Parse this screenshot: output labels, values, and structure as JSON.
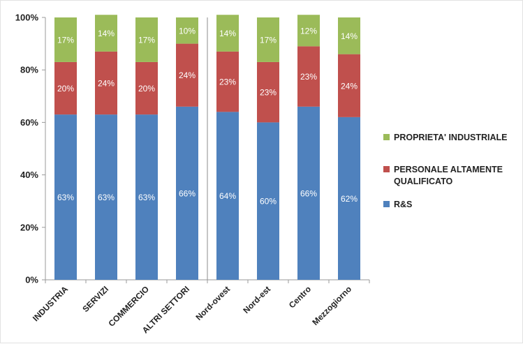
{
  "chart_data": {
    "type": "bar",
    "stacked": true,
    "percent_stacked": true,
    "categories": [
      "INDUSTRIA",
      "SERVIZI",
      "COMMERCIO",
      "ALTRI SETTORI",
      "Nord-ovest",
      "Nord-est",
      "Centro",
      "Mezzogiorno"
    ],
    "series": [
      {
        "name": "R&S",
        "color": "#4f81bd",
        "values": [
          63,
          63,
          63,
          66,
          64,
          60,
          66,
          62
        ]
      },
      {
        "name": "PERSONALE ALTAMENTE QUALIFICATO",
        "color": "#c0504d",
        "values": [
          20,
          24,
          20,
          24,
          23,
          23,
          23,
          24
        ]
      },
      {
        "name": "PROPRIETA' INDUSTRIALE",
        "color": "#9bbb59",
        "values": [
          17,
          14,
          17,
          10,
          14,
          17,
          12,
          14
        ]
      }
    ],
    "data_labels": {
      "R&S": [
        "63%",
        "63%",
        "63%",
        "66%",
        "64%",
        "60%",
        "66%",
        "62%"
      ],
      "PERSONALE ALTAMENTE QUALIFICATO": [
        "20%",
        "24%",
        "20%",
        "24%",
        "23%",
        "23%",
        "23%",
        "24%"
      ],
      "PROPRIETA' INDUSTRIALE": [
        "17%",
        "14%",
        "17%",
        "10%",
        "14%",
        "17%",
        "12%",
        "14%"
      ]
    },
    "y_ticks": [
      "0%",
      "20%",
      "40%",
      "60%",
      "80%",
      "100%"
    ],
    "ylim": [
      0,
      100
    ],
    "group_separator_after": 3,
    "legend_order": [
      "PROPRIETA' INDUSTRIALE",
      "PERSONALE ALTAMENTE QUALIFICATO",
      "R&S"
    ],
    "legend_position": "right",
    "grid": false,
    "title": "",
    "xlabel": "",
    "ylabel": ""
  }
}
